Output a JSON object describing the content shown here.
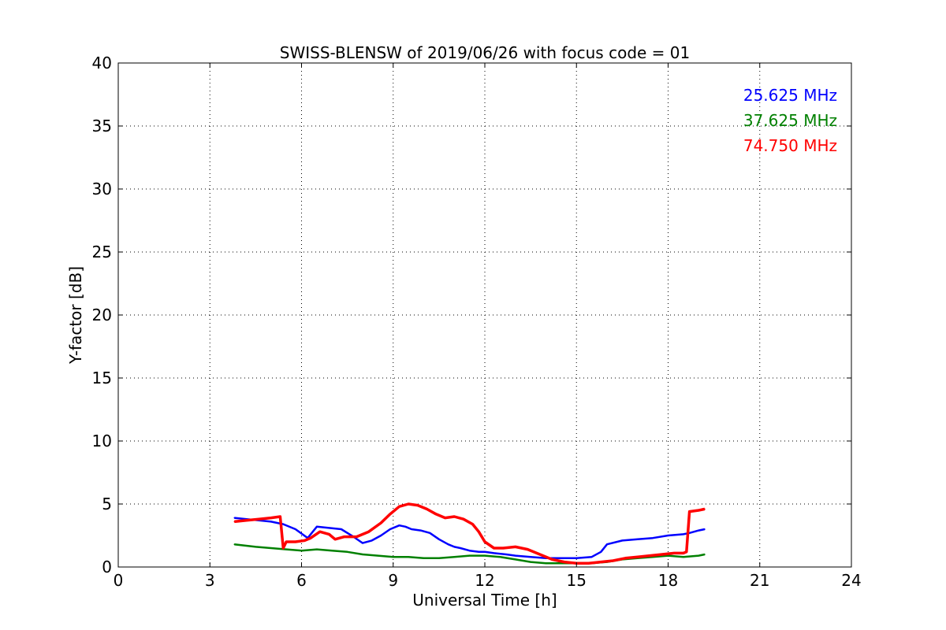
{
  "chart_data": {
    "type": "line",
    "title": "SWISS-BLENSW of 2019/06/26 with focus code = 01",
    "xlabel": "Universal Time [h]",
    "ylabel": "Y-factor [dB]",
    "xlim": [
      0,
      24
    ],
    "ylim": [
      0,
      40
    ],
    "x_ticks": [
      0,
      3,
      6,
      9,
      12,
      15,
      18,
      21,
      24
    ],
    "y_ticks": [
      0,
      5,
      10,
      15,
      20,
      25,
      30,
      35,
      40
    ],
    "grid": true,
    "legend_position": "top-right",
    "series": [
      {
        "name": "25.625 MHz",
        "color": "#0000ff",
        "x": [
          3.8,
          4.2,
          4.6,
          5.0,
          5.4,
          5.8,
          6.2,
          6.5,
          6.9,
          7.3,
          7.7,
          8.0,
          8.3,
          8.6,
          8.9,
          9.2,
          9.4,
          9.6,
          9.9,
          10.2,
          10.5,
          10.8,
          11.0,
          11.2,
          11.5,
          11.8,
          12.0,
          12.3,
          12.7,
          13.0,
          13.5,
          14.0,
          14.5,
          15.0,
          15.5,
          15.8,
          16.0,
          16.5,
          17.0,
          17.5,
          18.0,
          18.5,
          18.7,
          19.0,
          19.2
        ],
        "y": [
          3.9,
          3.8,
          3.7,
          3.6,
          3.4,
          3.0,
          2.3,
          3.2,
          3.1,
          3.0,
          2.4,
          1.9,
          2.1,
          2.5,
          3.0,
          3.3,
          3.2,
          3.0,
          2.9,
          2.7,
          2.2,
          1.8,
          1.6,
          1.5,
          1.3,
          1.2,
          1.2,
          1.1,
          1.0,
          0.9,
          0.8,
          0.7,
          0.7,
          0.7,
          0.8,
          1.2,
          1.8,
          2.1,
          2.2,
          2.3,
          2.5,
          2.6,
          2.7,
          2.9,
          3.0
        ]
      },
      {
        "name": "37.625 MHz",
        "color": "#008000",
        "x": [
          3.8,
          4.5,
          5.0,
          5.5,
          6.0,
          6.5,
          7.0,
          7.5,
          8.0,
          8.5,
          9.0,
          9.5,
          10.0,
          10.5,
          11.0,
          11.5,
          12.0,
          12.5,
          13.0,
          13.5,
          14.0,
          14.5,
          15.0,
          15.5,
          16.0,
          16.5,
          17.0,
          17.5,
          18.0,
          18.5,
          19.0,
          19.2
        ],
        "y": [
          1.8,
          1.6,
          1.5,
          1.4,
          1.3,
          1.4,
          1.3,
          1.2,
          1.0,
          0.9,
          0.8,
          0.8,
          0.7,
          0.7,
          0.8,
          0.9,
          0.9,
          0.8,
          0.6,
          0.4,
          0.3,
          0.3,
          0.3,
          0.3,
          0.4,
          0.6,
          0.7,
          0.8,
          0.9,
          0.8,
          0.9,
          1.0
        ]
      },
      {
        "name": "74.750 MHz",
        "color": "#ff0000",
        "x": [
          3.8,
          4.2,
          4.6,
          5.0,
          5.3,
          5.4,
          5.5,
          5.8,
          6.1,
          6.3,
          6.6,
          6.9,
          7.1,
          7.4,
          7.8,
          8.2,
          8.6,
          8.9,
          9.2,
          9.5,
          9.8,
          10.1,
          10.4,
          10.7,
          11.0,
          11.3,
          11.6,
          11.8,
          12.0,
          12.3,
          12.6,
          13.0,
          13.4,
          13.8,
          14.2,
          14.6,
          15.0,
          15.4,
          15.8,
          16.2,
          16.6,
          17.0,
          17.4,
          17.8,
          18.2,
          18.5,
          18.6,
          18.7,
          19.0,
          19.2
        ],
        "y": [
          3.6,
          3.7,
          3.8,
          3.9,
          4.0,
          1.5,
          2.0,
          2.0,
          2.1,
          2.3,
          2.8,
          2.6,
          2.2,
          2.4,
          2.4,
          2.8,
          3.5,
          4.2,
          4.8,
          5.0,
          4.9,
          4.6,
          4.2,
          3.9,
          4.0,
          3.8,
          3.4,
          2.8,
          2.0,
          1.5,
          1.5,
          1.6,
          1.4,
          1.0,
          0.6,
          0.4,
          0.3,
          0.3,
          0.4,
          0.5,
          0.7,
          0.8,
          0.9,
          1.0,
          1.1,
          1.1,
          1.2,
          4.4,
          4.5,
          4.6
        ]
      }
    ]
  }
}
